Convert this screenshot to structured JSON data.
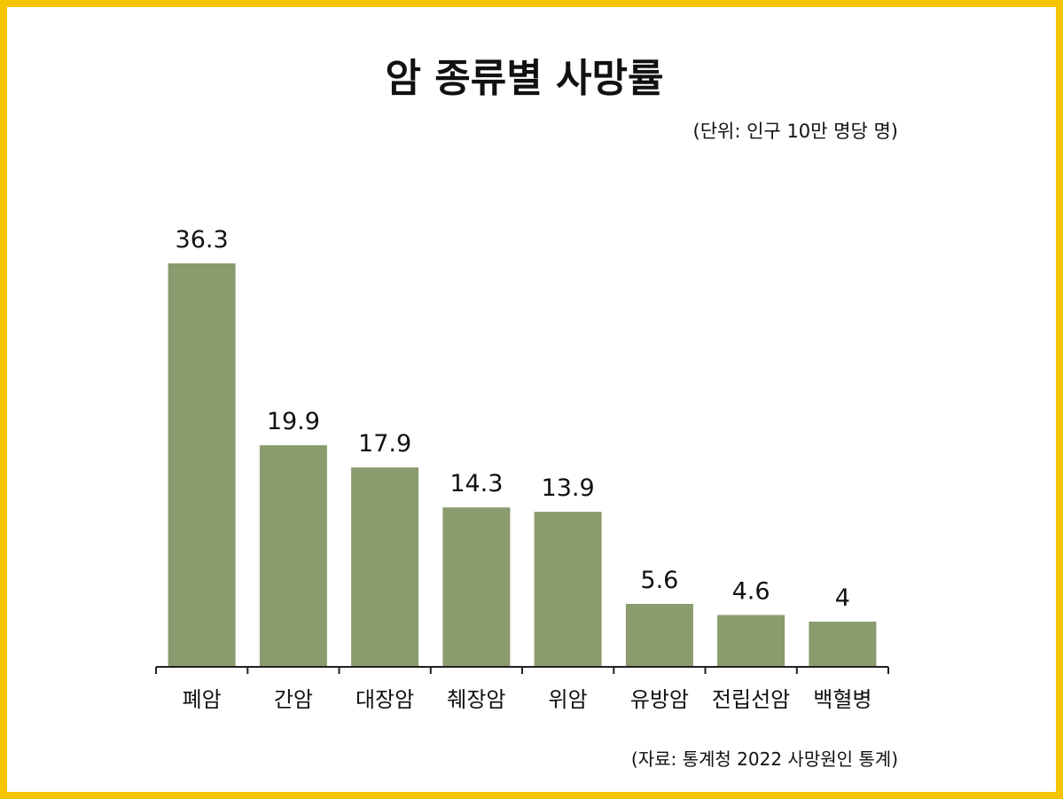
{
  "chart_data": {
    "type": "bar",
    "title": "암 종류별 사망률",
    "subtitle": "(단위: 인구 10만 명당 명)",
    "source": "(자료: 통계청 2022 사망원인 통계)",
    "categories": [
      "폐암",
      "간암",
      "대장암",
      "췌장암",
      "위암",
      "유방암",
      "전립선암",
      "백혈병"
    ],
    "values": [
      36.3,
      19.9,
      17.9,
      14.3,
      13.9,
      5.6,
      4.6,
      4
    ],
    "value_labels": [
      "36.3",
      "19.9",
      "17.9",
      "14.3",
      "13.9",
      "5.6",
      "4.6",
      "4"
    ],
    "bar_color": "#8a9b6e",
    "border_color": "#f5c400",
    "ylim": [
      0,
      36.3
    ],
    "grid": false,
    "legend": "none"
  }
}
